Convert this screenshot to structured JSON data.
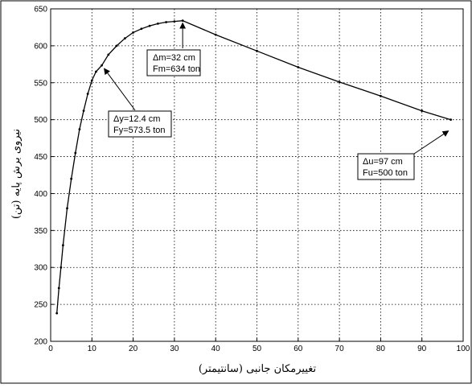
{
  "chart_data": {
    "type": "line",
    "title": "",
    "xlabel": "تغییرمکان جانبی (سانتیمتر)",
    "ylabel": "نیروی برش پایه (تن)",
    "xlim": [
      0,
      100
    ],
    "ylim": [
      200,
      650
    ],
    "xticks": [
      0,
      10,
      20,
      30,
      40,
      50,
      60,
      70,
      80,
      90,
      100
    ],
    "yticks": [
      200,
      250,
      300,
      350,
      400,
      450,
      500,
      550,
      600,
      650
    ],
    "grid": true,
    "series": [
      {
        "x": [
          1.5,
          2,
          2.5,
          3,
          4,
          5,
          6,
          7,
          8,
          9,
          10,
          11,
          12.4,
          14,
          16,
          18,
          20,
          22,
          24,
          26,
          28,
          30,
          32,
          40,
          50,
          60,
          70,
          80,
          90,
          97
        ],
        "y": [
          238,
          272,
          300,
          330,
          380,
          420,
          455,
          487,
          512,
          535,
          553,
          565,
          573.5,
          588,
          600,
          610,
          618,
          623,
          627,
          630,
          632,
          633,
          634,
          615,
          593,
          571,
          551,
          532,
          512,
          500
        ]
      }
    ],
    "annotations": [
      {
        "id": "ann-m",
        "line1": "Δm=32 cm",
        "line2": "Fm=634 ton",
        "point": [
          32,
          634
        ]
      },
      {
        "id": "ann-y",
        "line1": "Δy=12.4 cm",
        "line2": "Fy=573.5 ton",
        "point": [
          12.4,
          573.5
        ]
      },
      {
        "id": "ann-u",
        "line1": "Δu=97 cm",
        "line2": "Fu=500 ton",
        "point": [
          97,
          500
        ]
      }
    ]
  }
}
